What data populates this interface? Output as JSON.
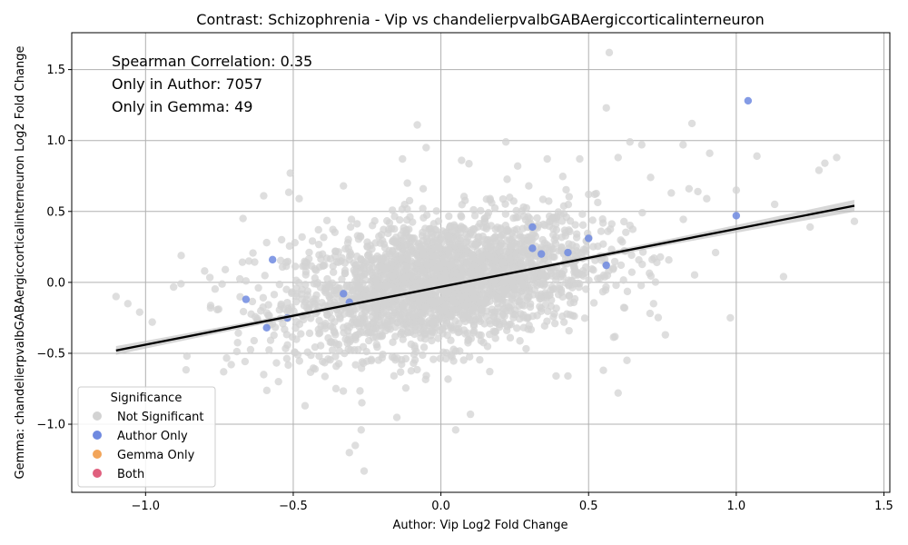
{
  "chart_data": {
    "type": "scatter",
    "title": "Contrast: Schizophrenia - Vip vs chandelierpvalbGABAergiccorticalinterneuron",
    "xlabel": "Author: Vip Log2 Fold Change",
    "ylabel": "Gemma: chandelierpvalbGABAergiccorticalinterneuron Log2 Fold Change",
    "xlim": [
      -1.25,
      1.52
    ],
    "ylim": [
      -1.48,
      1.76
    ],
    "xticks": [
      -1.0,
      -0.5,
      0.0,
      0.5,
      1.0,
      1.5
    ],
    "xtick_labels": [
      "−1.0",
      "−0.5",
      "0.0",
      "0.5",
      "1.0",
      "1.5"
    ],
    "yticks": [
      -1.0,
      -0.5,
      0.0,
      0.5,
      1.0,
      1.5
    ],
    "ytick_labels": [
      "−1.0",
      "−0.5",
      "0.0",
      "0.5",
      "1.0",
      "1.5"
    ],
    "grid": true,
    "annotations": [
      "Spearman Correlation: 0.35",
      "Only in Author: 7057",
      "Only in Gemma: 49"
    ],
    "legend": {
      "title": "Significance",
      "position": "lower-left",
      "entries": [
        {
          "label": "Not Significant",
          "color": "#d3d3d3"
        },
        {
          "label": "Author Only",
          "color": "#6f8ae0"
        },
        {
          "label": "Gemma Only",
          "color": "#f2a55a"
        },
        {
          "label": "Both",
          "color": "#e0607e"
        }
      ]
    },
    "regression_line": {
      "x": [
        -1.1,
        1.4
      ],
      "y": [
        -0.48,
        0.54
      ],
      "color": "#000000"
    },
    "series": [
      {
        "name": "Not Significant",
        "color": "#d3d3d3",
        "points": [
          [
            -1.1,
            -0.1
          ],
          [
            -1.06,
            -0.15
          ],
          [
            -1.02,
            -0.21
          ],
          [
            -0.88,
            -0.01
          ],
          [
            -0.86,
            -0.52
          ],
          [
            -0.8,
            0.08
          ],
          [
            -0.78,
            -0.18
          ],
          [
            -0.73,
            0.09
          ],
          [
            -0.71,
            -0.58
          ],
          [
            -0.67,
            0.45
          ],
          [
            -0.66,
            0.01
          ],
          [
            -0.65,
            0.15
          ],
          [
            -0.6,
            0.61
          ],
          [
            -0.6,
            -0.65
          ],
          [
            -0.59,
            0.28
          ],
          [
            -0.55,
            -0.7
          ],
          [
            -0.51,
            0.77
          ],
          [
            -0.48,
            0.59
          ],
          [
            -0.47,
            0.32
          ],
          [
            -0.46,
            -0.87
          ],
          [
            -0.33,
            0.68
          ],
          [
            -0.31,
            -1.2
          ],
          [
            -0.29,
            -1.15
          ],
          [
            -0.27,
            -1.04
          ],
          [
            -0.26,
            -1.33
          ],
          [
            -0.13,
            0.87
          ],
          [
            -0.08,
            1.11
          ],
          [
            -0.05,
            0.95
          ],
          [
            -0.06,
            0.66
          ],
          [
            0.07,
            0.86
          ],
          [
            0.1,
            -0.93
          ],
          [
            0.05,
            -1.04
          ],
          [
            0.22,
            0.99
          ],
          [
            0.26,
            0.82
          ],
          [
            0.36,
            0.87
          ],
          [
            0.39,
            -0.66
          ],
          [
            0.43,
            -0.66
          ],
          [
            0.47,
            0.87
          ],
          [
            0.5,
            0.62
          ],
          [
            0.55,
            -0.62
          ],
          [
            0.56,
            1.23
          ],
          [
            0.57,
            1.62
          ],
          [
            0.6,
            0.88
          ],
          [
            0.6,
            -0.78
          ],
          [
            0.63,
            -0.55
          ],
          [
            0.64,
            0.99
          ],
          [
            0.68,
            0.97
          ],
          [
            0.71,
            0.74
          ],
          [
            0.72,
            -0.15
          ],
          [
            0.76,
            -0.37
          ],
          [
            0.78,
            0.63
          ],
          [
            0.82,
            0.97
          ],
          [
            0.84,
            0.66
          ],
          [
            0.85,
            1.12
          ],
          [
            0.87,
            0.64
          ],
          [
            0.9,
            0.59
          ],
          [
            0.91,
            0.91
          ],
          [
            0.93,
            0.21
          ],
          [
            0.98,
            -0.25
          ],
          [
            1.0,
            0.65
          ],
          [
            1.07,
            0.89
          ],
          [
            1.13,
            0.55
          ],
          [
            1.16,
            0.04
          ],
          [
            1.25,
            0.39
          ],
          [
            1.28,
            0.79
          ],
          [
            1.3,
            0.84
          ],
          [
            1.34,
            0.88
          ],
          [
            1.4,
            0.43
          ]
        ],
        "dense_cloud": {
          "center": [
            0.0,
            0.0
          ],
          "x_spread": 0.26,
          "y_spread": 0.24,
          "count": 2600,
          "correlation": 0.35
        }
      },
      {
        "name": "Author Only",
        "color": "#6f8ae0",
        "points": [
          [
            1.04,
            1.28
          ],
          [
            1.0,
            0.47
          ],
          [
            0.56,
            0.12
          ],
          [
            0.5,
            0.31
          ],
          [
            0.43,
            0.21
          ],
          [
            0.34,
            0.2
          ],
          [
            0.31,
            0.24
          ],
          [
            0.31,
            0.39
          ],
          [
            -0.57,
            0.16
          ],
          [
            -0.66,
            -0.12
          ],
          [
            -0.59,
            -0.32
          ],
          [
            -0.52,
            -0.25
          ],
          [
            -0.33,
            -0.08
          ],
          [
            -0.31,
            -0.14
          ]
        ]
      },
      {
        "name": "Gemma Only",
        "color": "#f2a55a",
        "points": []
      },
      {
        "name": "Both",
        "color": "#e0607e",
        "points": []
      }
    ]
  }
}
